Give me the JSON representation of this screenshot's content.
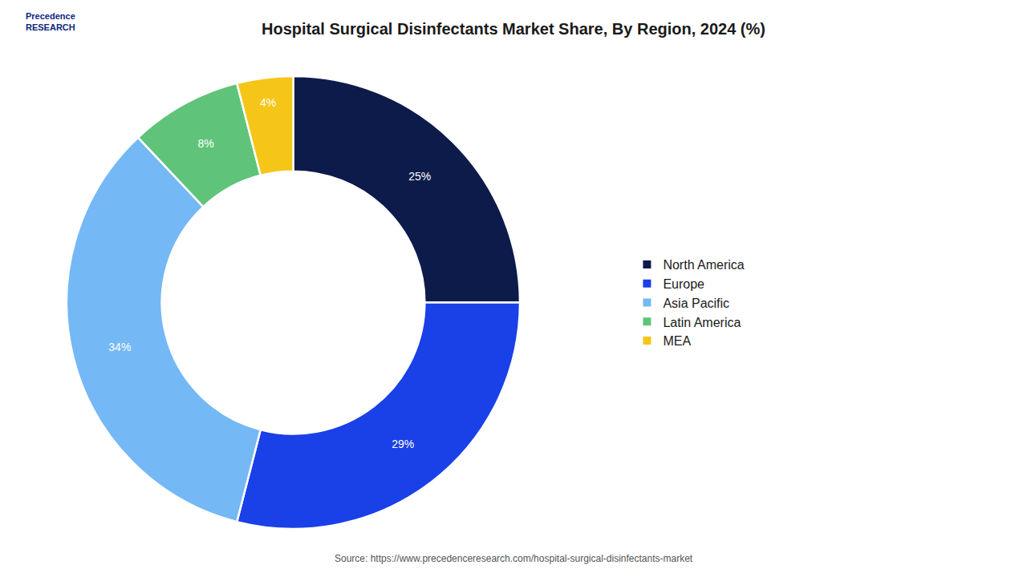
{
  "chart_data": {
    "type": "pie",
    "title": "Hospital Surgical Disinfectants Market Share, By Region, 2024 (%)",
    "categories": [
      "North America",
      "Europe",
      "Asia Pacific",
      "Latin America",
      "MEA"
    ],
    "values": [
      25,
      29,
      34,
      8,
      4
    ],
    "value_labels": [
      "25%",
      "29%",
      "34%",
      "8%",
      "4%"
    ],
    "colors": [
      "#0d1b4b",
      "#1a40e8",
      "#74b8f5",
      "#5fc47a",
      "#f5c518"
    ],
    "data_labels": true,
    "legend": "right",
    "annotations": [
      "Precedence\nRESEARCH",
      "Source: https://www.precedenceresearch.com/hospital-surgical-disinfectants-market"
    ]
  }
}
